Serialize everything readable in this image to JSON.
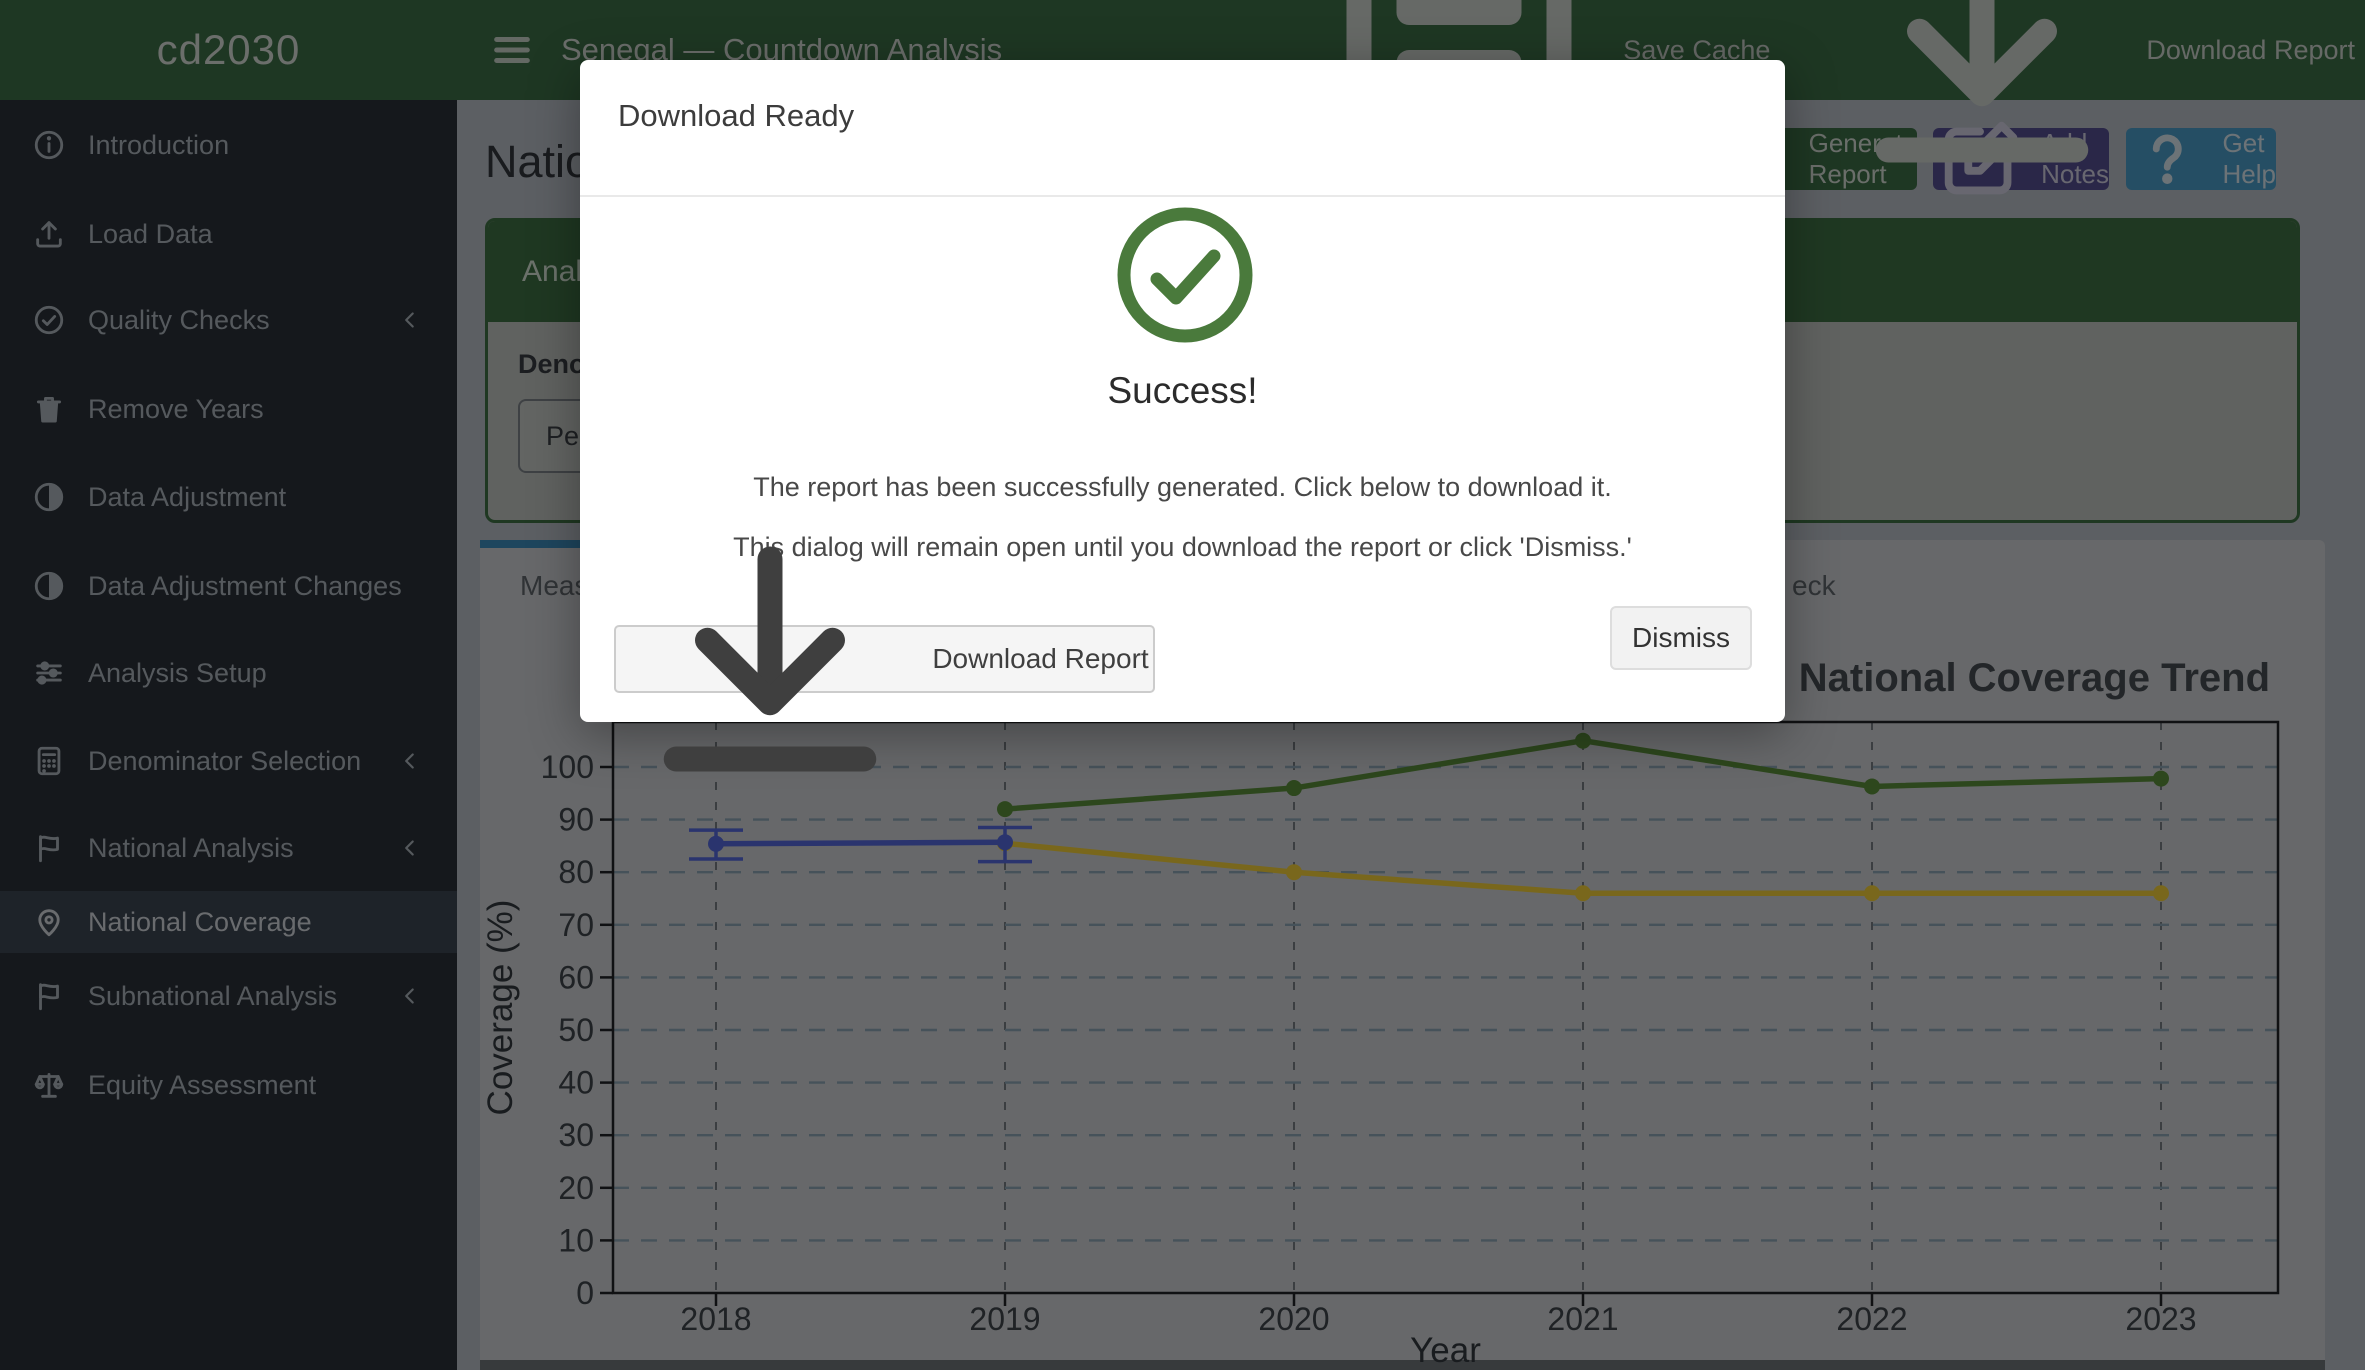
{
  "header": {
    "brand": "cd2030",
    "title": "Senegal — Countdown Analysis",
    "save_cache": "Save Cache",
    "download_report": "Download Report"
  },
  "sidebar": {
    "items": [
      {
        "label": "Introduction",
        "icon": "info-icon",
        "chevron": false,
        "active": false
      },
      {
        "label": "Load Data",
        "icon": "upload-icon",
        "chevron": false,
        "active": false
      },
      {
        "label": "Quality Checks",
        "icon": "check-circle-icon",
        "chevron": true,
        "active": false
      },
      {
        "label": "Remove Years",
        "icon": "trash-icon",
        "chevron": false,
        "active": false
      },
      {
        "label": "Data Adjustment",
        "icon": "adjust-icon",
        "chevron": false,
        "active": false
      },
      {
        "label": "Data Adjustment Changes",
        "icon": "adjust-icon",
        "chevron": false,
        "active": false
      },
      {
        "label": "Analysis Setup",
        "icon": "sliders-icon",
        "chevron": false,
        "active": false
      },
      {
        "label": "Denominator Selection",
        "icon": "calculator-icon",
        "chevron": true,
        "active": false
      },
      {
        "label": "National Analysis",
        "icon": "flag-icon",
        "chevron": true,
        "active": false
      },
      {
        "label": "National Coverage",
        "icon": "map-icon",
        "chevron": false,
        "active": true
      },
      {
        "label": "Subnational Analysis",
        "icon": "flag-icon",
        "chevron": true,
        "active": false
      },
      {
        "label": "Equity Assessment",
        "icon": "scale-icon",
        "chevron": false,
        "active": false
      }
    ]
  },
  "page": {
    "title": "National Coverage",
    "generate_report": "Generate Report",
    "add_notes": "Add Notes",
    "get_help": "Get Help"
  },
  "panel": {
    "title": "Analysis Settings",
    "denominator_label": "Denominator",
    "denominator_value": "Pent"
  },
  "tabs": {
    "active_tab_fragment": "Measl",
    "second_tab_fragment": "eck"
  },
  "modal": {
    "title": "Download Ready",
    "heading": "Success!",
    "line1": "The report has been successfully generated. Click below to download it.",
    "line2": "This dialog will remain open until you download the report or click 'Dismiss.'",
    "download_button": "Download Report",
    "dismiss_button": "Dismiss"
  },
  "colors": {
    "header_green": "#3c6e46",
    "sidebar_dark": "#2b3138",
    "tab_accent_blue": "#3c8dbc",
    "add_notes_purple": "#544f90",
    "get_help_teal": "#4a9cc8",
    "success_green": "#4a7a3c"
  },
  "chart_data": {
    "type": "line",
    "title": "National Coverage Trend",
    "xlabel": "Year",
    "ylabel": "Coverage (%)",
    "x": [
      2018,
      2019,
      2020,
      2021,
      2022,
      2023
    ],
    "ylim": [
      0,
      110
    ],
    "yticks": [
      0,
      10,
      20,
      30,
      40,
      50,
      60,
      70,
      80,
      90,
      100
    ],
    "grid": true,
    "legend": "none",
    "series": [
      {
        "name": "survey-estimate-with-ci",
        "color": "#5468dc",
        "values": [
          85.4,
          85.7,
          null,
          null,
          null,
          null
        ],
        "ci_low": [
          82.5,
          82.0,
          null,
          null,
          null,
          null
        ],
        "ci_high": [
          88.0,
          88.5,
          null,
          null,
          null,
          null
        ]
      },
      {
        "name": "series-dark-green",
        "color": "#5a8f3a",
        "values": [
          null,
          92,
          96,
          105,
          96.3,
          97.8
        ]
      },
      {
        "name": "series-yellow",
        "color": "#f2cf39",
        "values": [
          null,
          85.5,
          80,
          76,
          76,
          76
        ]
      }
    ]
  }
}
